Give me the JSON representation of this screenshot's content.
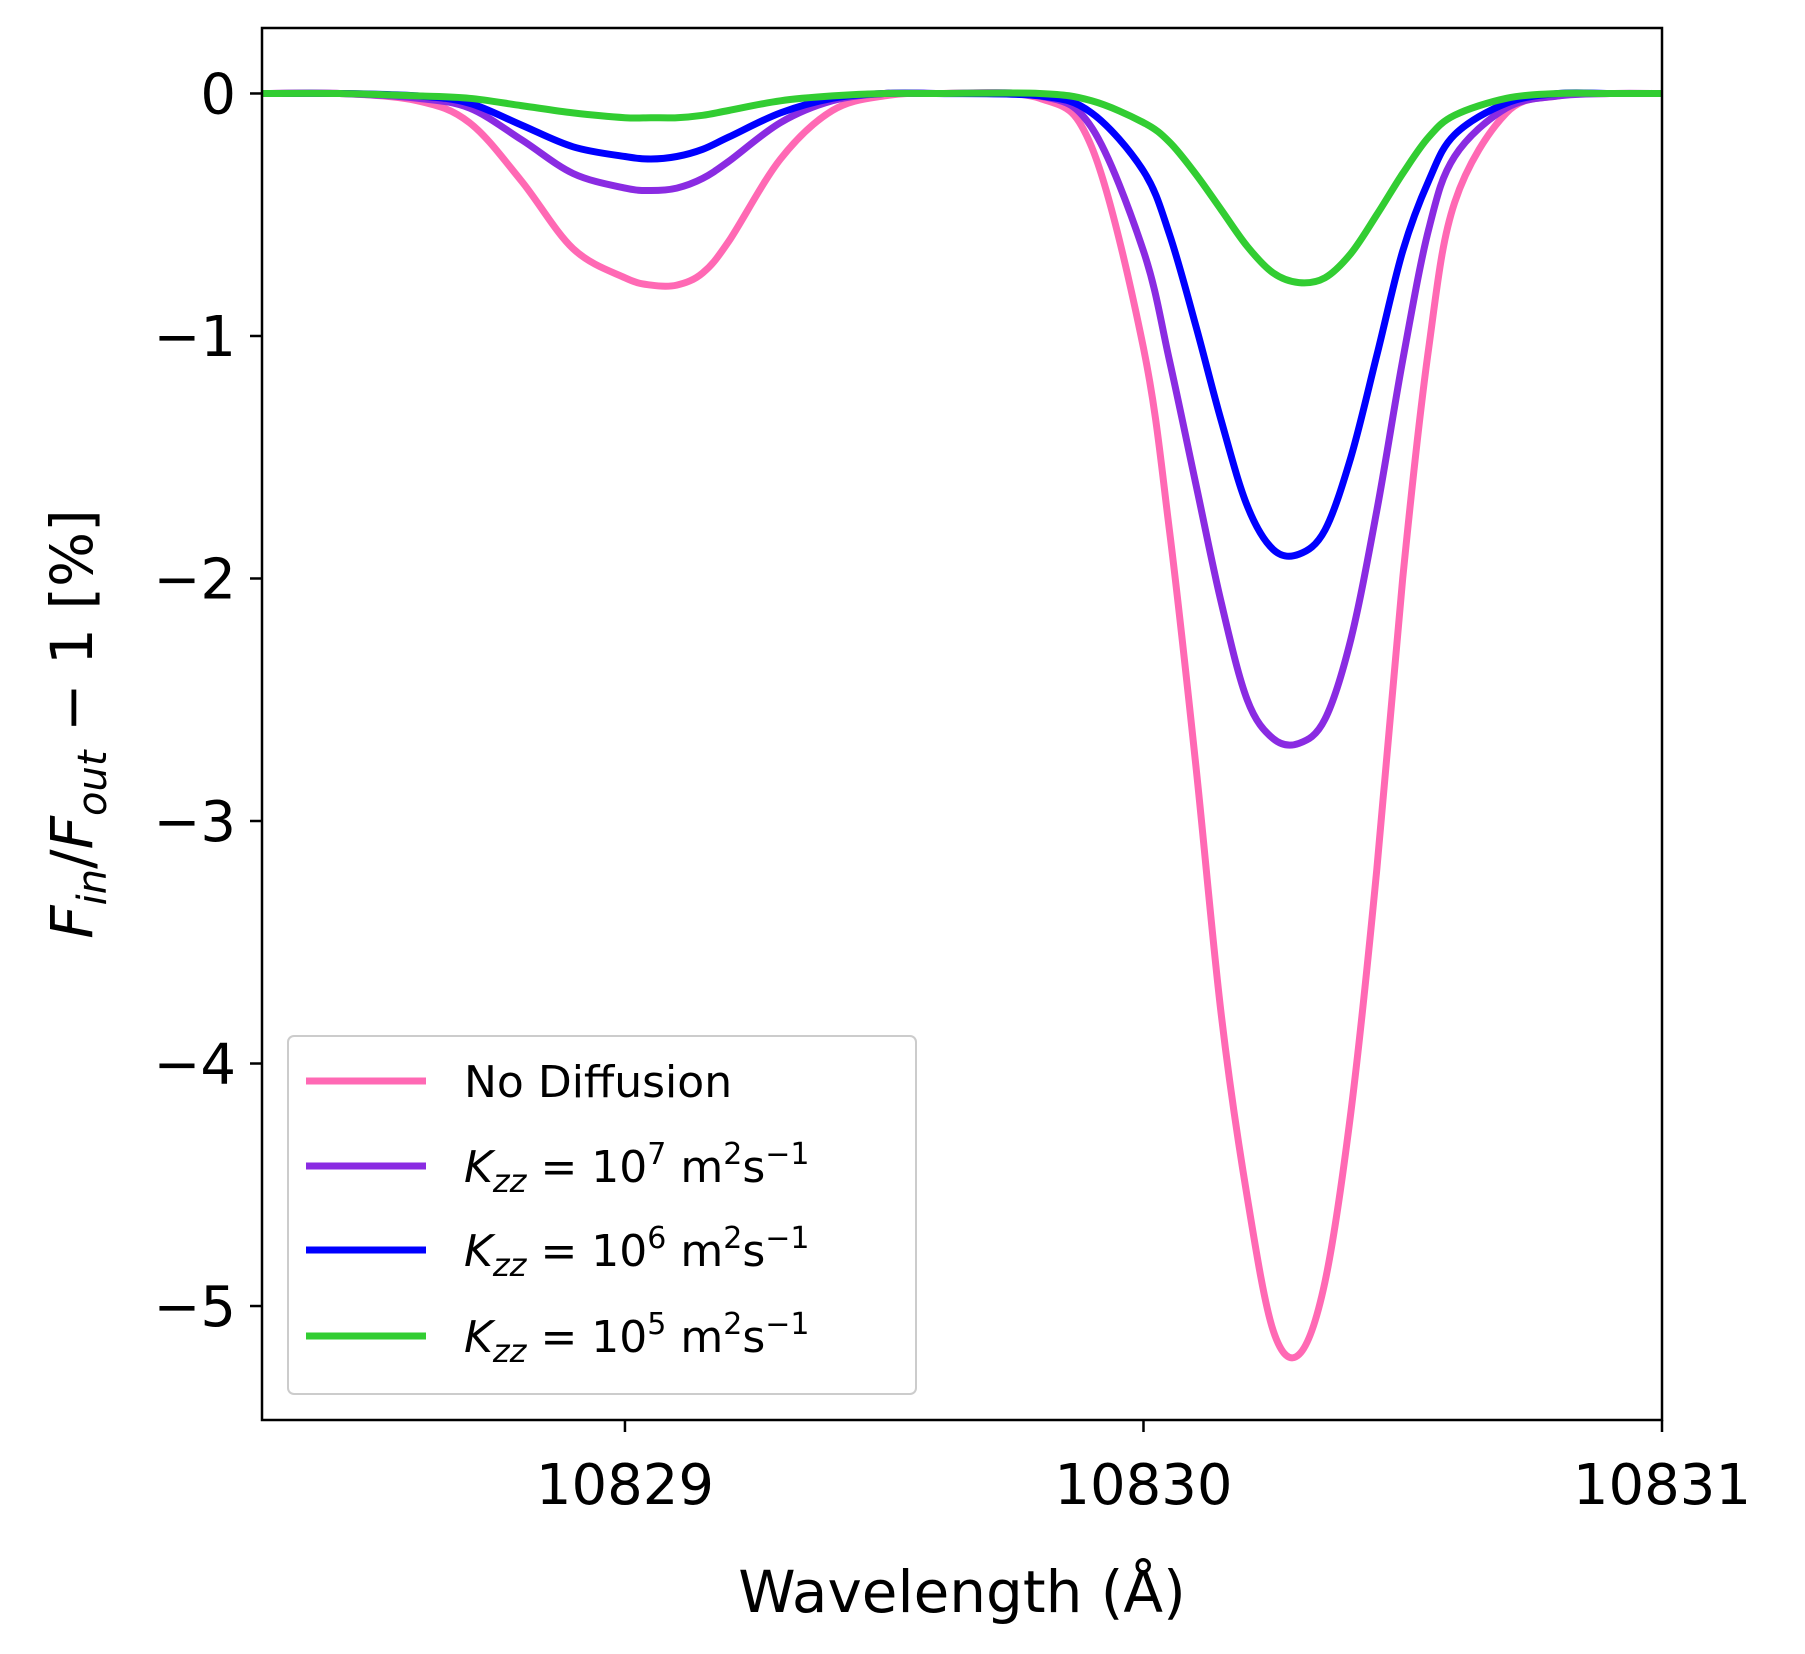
{
  "chart_data": {
    "type": "line",
    "xlabel": "Wavelength (Å)",
    "ylabel": "F_in/F_out − 1 [%]",
    "xlim": [
      10828.3,
      10831.0
    ],
    "ylim": [
      -5.47,
      0.27
    ],
    "xticks": [
      10829,
      10830,
      10831
    ],
    "xtick_labels": [
      "10829",
      "10830",
      "10831"
    ],
    "yticks": [
      0,
      -1,
      -2,
      -3,
      -4,
      -5
    ],
    "ytick_labels": [
      "0",
      "−1",
      "−2",
      "−3",
      "−4",
      "−5"
    ],
    "grid": false,
    "legend": {
      "position": "lower-left",
      "entries": [
        {
          "label": "No Diffusion",
          "color": "#ff69b4"
        },
        {
          "label": "K_zz = 10^7 m^2 s^-1",
          "color": "#8a2be2"
        },
        {
          "label": "K_zz = 10^6 m^2 s^-1",
          "color": "#0000ff"
        },
        {
          "label": "K_zz = 10^5 m^2 s^-1",
          "color": "#32cd32"
        }
      ]
    },
    "x": [
      10828.3,
      10828.45,
      10828.6,
      10828.7,
      10828.8,
      10828.9,
      10829.0,
      10829.05,
      10829.1,
      10829.15,
      10829.2,
      10829.3,
      10829.4,
      10829.5,
      10829.6,
      10829.8,
      10829.9,
      10830.0,
      10830.05,
      10830.1,
      10830.15,
      10830.2,
      10830.25,
      10830.3,
      10830.35,
      10830.4,
      10830.45,
      10830.5,
      10830.55,
      10830.6,
      10830.7,
      10830.8,
      10830.9,
      10831.0
    ],
    "series": [
      {
        "name": "No Diffusion",
        "color": "#ff69b4",
        "values": [
          0,
          0,
          -0.03,
          -0.12,
          -0.36,
          -0.64,
          -0.76,
          -0.79,
          -0.79,
          -0.74,
          -0.61,
          -0.27,
          -0.07,
          -0.01,
          0,
          -0.02,
          -0.22,
          -1.05,
          -1.8,
          -2.75,
          -3.8,
          -4.55,
          -5.1,
          -5.2,
          -4.9,
          -4.2,
          -3.2,
          -2.0,
          -1.05,
          -0.45,
          -0.08,
          -0.01,
          0,
          0
        ]
      },
      {
        "name": "K_zz = 10^7 m^2 s^-1",
        "color": "#8a2be2",
        "values": [
          0,
          0,
          -0.02,
          -0.06,
          -0.19,
          -0.33,
          -0.39,
          -0.4,
          -0.39,
          -0.35,
          -0.28,
          -0.12,
          -0.03,
          0,
          0,
          -0.01,
          -0.14,
          -0.65,
          -1.1,
          -1.6,
          -2.1,
          -2.5,
          -2.66,
          -2.68,
          -2.58,
          -2.25,
          -1.72,
          -1.1,
          -0.56,
          -0.26,
          -0.06,
          -0.01,
          0,
          0
        ]
      },
      {
        "name": "K_zz = 10^6 m^2 s^-1",
        "color": "#0000ff",
        "values": [
          0,
          0,
          -0.01,
          -0.04,
          -0.13,
          -0.22,
          -0.26,
          -0.27,
          -0.26,
          -0.23,
          -0.18,
          -0.08,
          -0.02,
          0,
          0,
          -0.01,
          -0.08,
          -0.32,
          -0.58,
          -0.95,
          -1.35,
          -1.7,
          -1.88,
          -1.9,
          -1.8,
          -1.5,
          -1.08,
          -0.65,
          -0.36,
          -0.17,
          -0.04,
          0,
          0,
          0
        ]
      },
      {
        "name": "K_zz = 10^5 m^2 s^-1",
        "color": "#32cd32",
        "values": [
          0,
          0,
          -0.01,
          -0.02,
          -0.05,
          -0.08,
          -0.1,
          -0.1,
          -0.1,
          -0.09,
          -0.07,
          -0.03,
          -0.01,
          0,
          0,
          0,
          -0.03,
          -0.12,
          -0.2,
          -0.33,
          -0.48,
          -0.63,
          -0.74,
          -0.78,
          -0.76,
          -0.66,
          -0.5,
          -0.33,
          -0.18,
          -0.09,
          -0.02,
          0,
          0,
          0
        ]
      }
    ]
  }
}
